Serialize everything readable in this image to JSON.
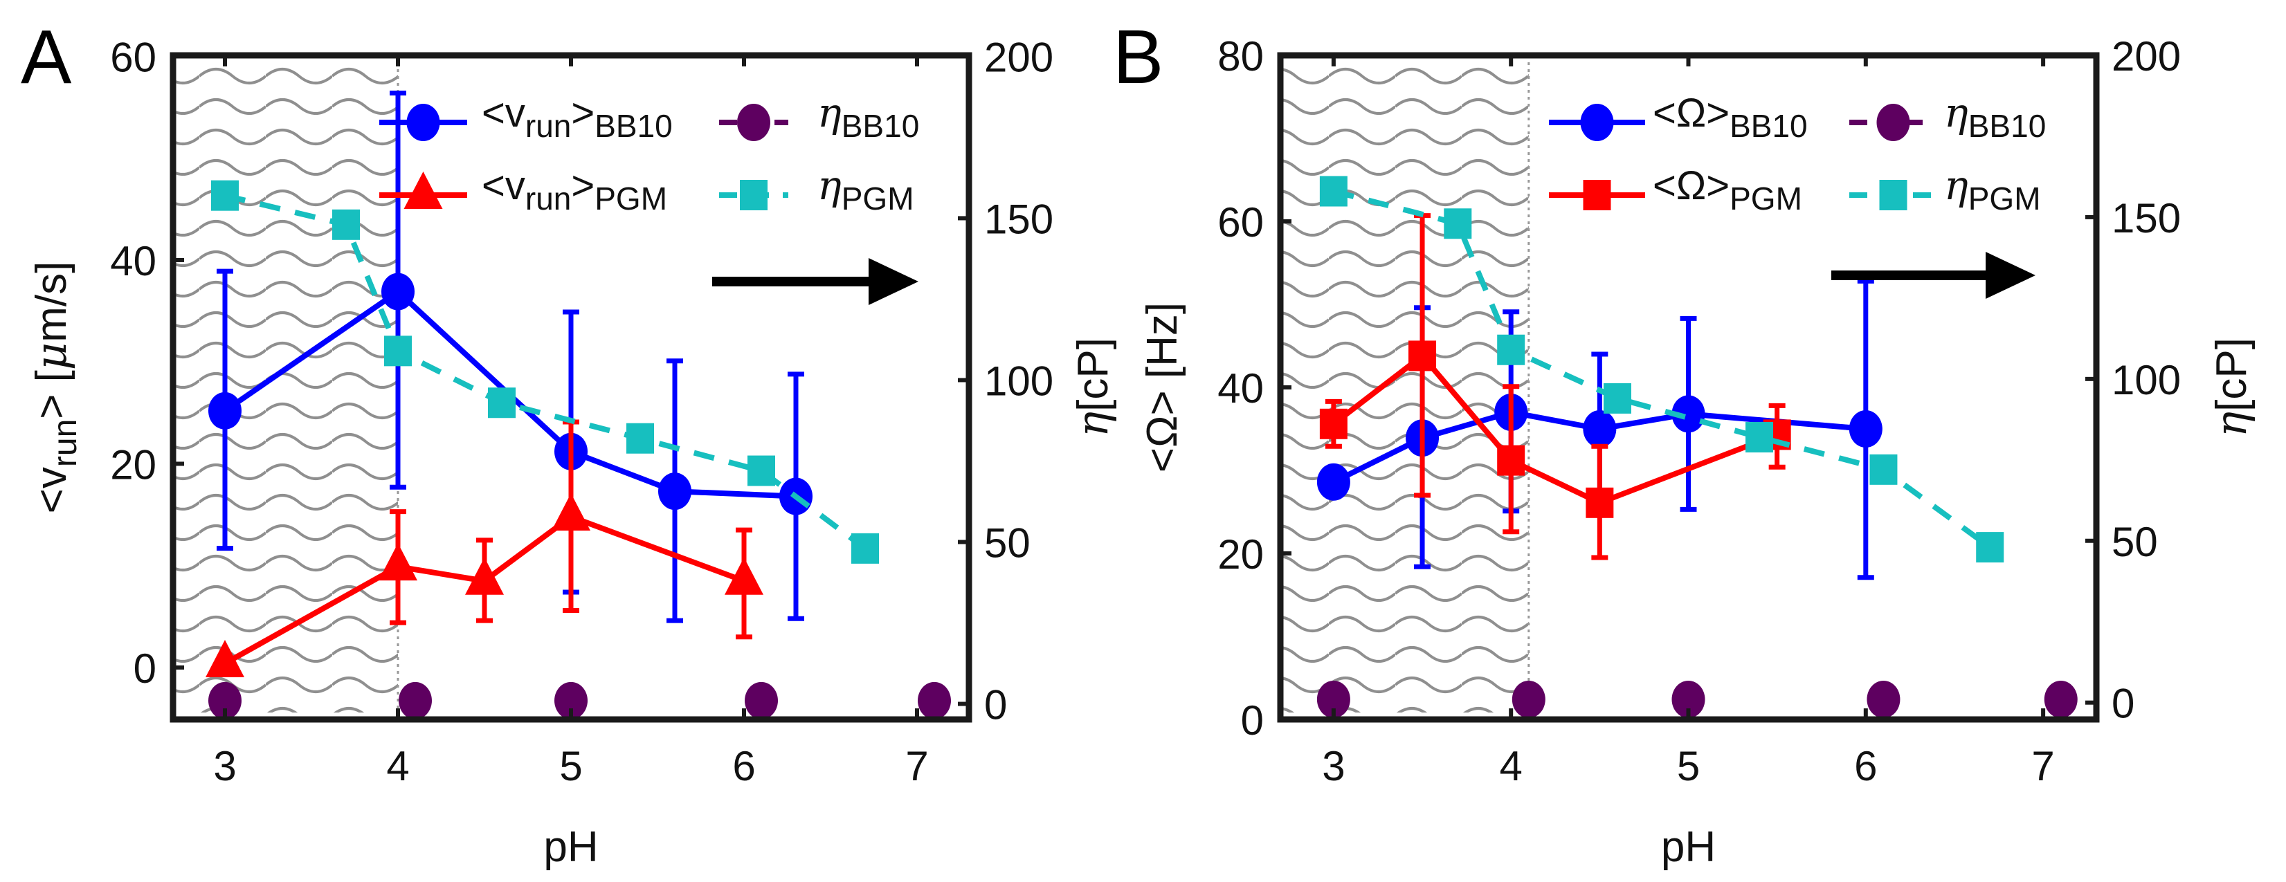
{
  "chart_data": [
    {
      "type": "line",
      "panel_label": "A",
      "xlabel": "pH",
      "ylabel_left": {
        "parts": [
          [
            "<v",
            ""
          ],
          [
            "run",
            "sub"
          ],
          [
            "> [",
            ""
          ],
          [
            "μ",
            "it"
          ],
          [
            "m/s]",
            ""
          ]
        ]
      },
      "ylabel_right": {
        "parts": [
          [
            "η",
            "it"
          ],
          [
            "[cP]",
            ""
          ]
        ]
      },
      "xlim": [
        2.7,
        7.3
      ],
      "ylim_left": [
        -5.1,
        60.1
      ],
      "ylim_right": [
        -4.8,
        200.3
      ],
      "xticks": [
        3,
        4,
        5,
        6,
        7
      ],
      "yticks_left": [
        0,
        20,
        40,
        60
      ],
      "yticks_right": [
        0,
        50,
        100,
        150,
        200
      ],
      "shaded_region_ph": [
        2.7,
        4.0
      ],
      "arrow_direction": "right",
      "legend_position": "top-right",
      "series": [
        {
          "name": "<v_run>_BB10",
          "legend": [
            [
              "<v",
              ""
            ],
            [
              "run",
              "sub"
            ],
            [
              ">",
              ""
            ],
            [
              "BB10",
              "sub"
            ]
          ],
          "axis": "left",
          "color": "#0000ff",
          "marker": "circle",
          "line": "solid",
          "x": [
            3,
            4,
            5,
            5.6,
            6.3
          ],
          "y": [
            25.2,
            36.9,
            21.2,
            17.3,
            16.8
          ],
          "err_low": [
            11.7,
            17.7,
            7.4,
            4.6,
            4.8
          ],
          "err_high": [
            38.9,
            56.4,
            34.9,
            30.1,
            28.8
          ]
        },
        {
          "name": "<v_run>_PGM",
          "legend": [
            [
              "<v",
              ""
            ],
            [
              "run",
              "sub"
            ],
            [
              ">",
              ""
            ],
            [
              "PGM",
              "sub"
            ]
          ],
          "axis": "left",
          "color": "#ff0000",
          "marker": "triangle",
          "line": "solid",
          "x": [
            3,
            4,
            4.5,
            5,
            6
          ],
          "y": [
            0.4,
            9.9,
            8.5,
            14.8,
            8.5
          ],
          "err_low": [
            null,
            4.4,
            4.6,
            5.6,
            3.0
          ],
          "err_high": [
            null,
            15.3,
            12.5,
            24.1,
            13.5
          ]
        },
        {
          "name": "η_BB10",
          "legend": [
            [
              "η",
              "it"
            ],
            [
              "BB10",
              "sub"
            ]
          ],
          "axis": "right",
          "color": "#5e0060",
          "marker": "circle",
          "line": "dashdot-legend",
          "x": [
            3,
            4.1,
            5,
            6.1,
            7.1
          ],
          "y": [
            1,
            1,
            1,
            1,
            1
          ]
        },
        {
          "name": "η_PGM",
          "legend": [
            [
              "η",
              "it"
            ],
            [
              "PGM",
              "sub"
            ]
          ],
          "axis": "right",
          "color": "#17bfbf",
          "marker": "square",
          "line": "dashed",
          "x": [
            3,
            3.7,
            4,
            4.6,
            5.4,
            6.1,
            6.7
          ],
          "y": [
            157,
            148,
            109,
            93,
            82,
            72,
            48
          ]
        }
      ]
    },
    {
      "type": "line",
      "panel_label": "B",
      "xlabel": "pH",
      "ylabel_left": {
        "parts": [
          [
            "<Ω> [Hz]",
            ""
          ]
        ]
      },
      "ylabel_right": {
        "parts": [
          [
            "η",
            "it"
          ],
          [
            "[cP]",
            ""
          ]
        ]
      },
      "xlim": [
        2.7,
        7.3
      ],
      "ylim_left": [
        0,
        80
      ],
      "ylim_right": [
        -5.2,
        200
      ],
      "xticks": [
        3,
        4,
        5,
        6,
        7
      ],
      "yticks_left": [
        0,
        20,
        40,
        60,
        80
      ],
      "yticks_right": [
        0,
        50,
        100,
        150,
        200
      ],
      "shaded_region_ph": [
        2.7,
        4.1
      ],
      "arrow_direction": "right",
      "legend_position": "top-right",
      "series": [
        {
          "name": "<Ω>_BB10",
          "legend": [
            [
              "<Ω>",
              ""
            ],
            [
              "BB10",
              "sub"
            ]
          ],
          "axis": "left",
          "color": "#0000ff",
          "marker": "circle",
          "line": "solid",
          "x": [
            3,
            3.5,
            4,
            4.5,
            5,
            6
          ],
          "y": [
            28.6,
            33.9,
            37.0,
            35.0,
            36.8,
            35.0
          ],
          "err_low": [
            null,
            18.4,
            25.1,
            26.0,
            25.3,
            17.1
          ],
          "err_high": [
            null,
            49.6,
            49.1,
            44.0,
            48.3,
            52.8
          ]
        },
        {
          "name": "<Ω>_PGM",
          "legend": [
            [
              "<Ω>",
              ""
            ],
            [
              "PGM",
              "sub"
            ]
          ],
          "axis": "left",
          "color": "#ff0000",
          "marker": "square",
          "line": "solid",
          "x": [
            3,
            3.5,
            4,
            4.5,
            5.5
          ],
          "y": [
            35.6,
            43.8,
            31.2,
            26.1,
            34.3
          ],
          "err_low": [
            32.9,
            27.0,
            22.6,
            19.5,
            30.4
          ],
          "err_high": [
            38.3,
            60.7,
            40.1,
            32.9,
            37.8
          ]
        },
        {
          "name": "η_BB10",
          "legend": [
            [
              "η",
              "it"
            ],
            [
              "BB10",
              "sub"
            ]
          ],
          "axis": "right",
          "color": "#5e0060",
          "marker": "circle",
          "line": "dashdot-legend",
          "x": [
            3,
            4.1,
            5,
            6.1,
            7.1
          ],
          "y": [
            1,
            1,
            1,
            1,
            1
          ]
        },
        {
          "name": "η_PGM",
          "legend": [
            [
              "η",
              "it"
            ],
            [
              "PGM",
              "sub"
            ]
          ],
          "axis": "right",
          "color": "#17bfbf",
          "marker": "square",
          "line": "dashed",
          "x": [
            3,
            3.7,
            4,
            4.6,
            5.4,
            6.1,
            6.7
          ],
          "y": [
            158,
            148,
            109,
            94,
            82,
            72,
            48
          ]
        }
      ]
    }
  ]
}
